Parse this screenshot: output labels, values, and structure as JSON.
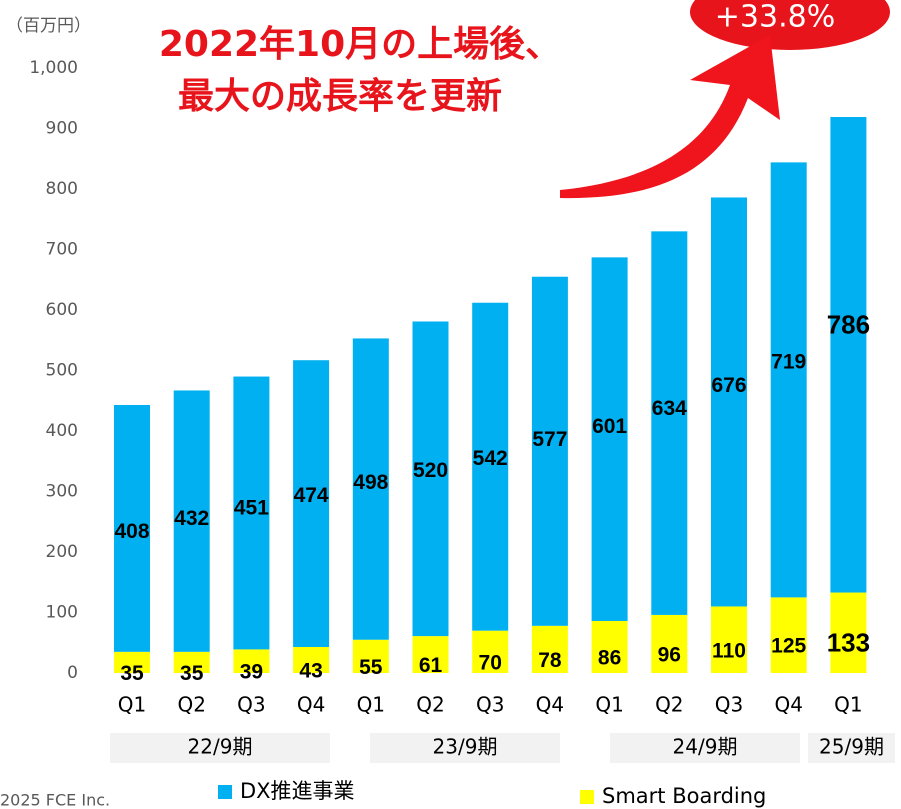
{
  "chart_data": {
    "type": "stacked_bar",
    "unit_label": "（百万円）",
    "annotation": [
      "2022年10月の上場後、",
      "最大の成長率を更新"
    ],
    "badge": "+33.8%",
    "footer": "2025 FCE Inc.",
    "categories": [
      "Q1",
      "Q2",
      "Q3",
      "Q4",
      "Q1",
      "Q2",
      "Q3",
      "Q4",
      "Q1",
      "Q2",
      "Q3",
      "Q4",
      "Q1"
    ],
    "groups": [
      "22/9期",
      "23/9期",
      "24/9期",
      "25/9期"
    ],
    "series": [
      {
        "name": "Smart Boarding",
        "color": "#ffff00",
        "values": [
          35,
          35,
          39,
          43,
          55,
          61,
          70,
          78,
          86,
          96,
          110,
          125,
          133
        ]
      },
      {
        "name": "DX推進事業",
        "color": "#00b0f0",
        "values": [
          408,
          432,
          451,
          474,
          498,
          520,
          542,
          577,
          601,
          634,
          676,
          719,
          786
        ]
      }
    ],
    "ylim": [
      0,
      1000
    ],
    "yticks": [
      0,
      100,
      200,
      300,
      400,
      500,
      600,
      700,
      800,
      900,
      {
        "value": 1000,
        "label": "1,000"
      }
    ]
  }
}
